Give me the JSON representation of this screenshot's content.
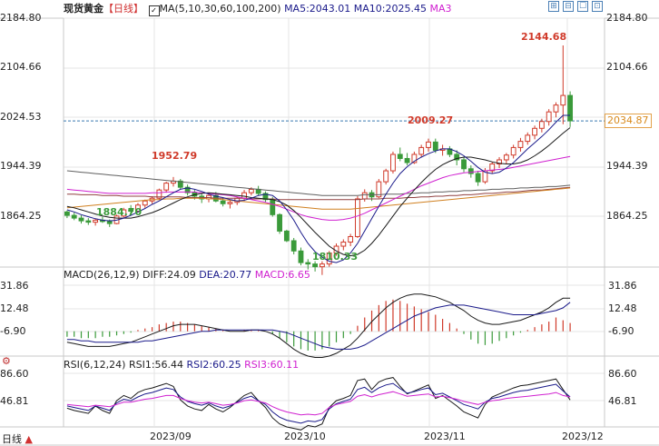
{
  "header": {
    "instrument": "现货黄金",
    "period": "【日线】",
    "ma_label": "MA(5,10,30,60,100,200)",
    "ma5": "MA5:2043.01",
    "ma10": "MA10:2025.45",
    "ma3": "MA3"
  },
  "toolbar": [
    "⊞",
    "⊟",
    "☐",
    "⊡"
  ],
  "price_axis": [
    "2184.80",
    "2104.66",
    "2024.53",
    "1944.39",
    "1864.25"
  ],
  "last_price": "2034.87",
  "macd": {
    "label": "MACD(26,12,9)",
    "diff": "DIFF:24.09",
    "dea": "DEA:20.77",
    "macd": "MACD:6.65",
    "axis": [
      "31.86",
      "12.48",
      "-6.90"
    ]
  },
  "rsi": {
    "label": "RSI(6,12,24)",
    "rsi1": "RSI1:56.44",
    "rsi2": "RSI2:60.25",
    "rsi3": "RSI3:60.11",
    "axis": [
      "86.60",
      "46.81"
    ]
  },
  "dates": [
    "2023/09",
    "2023/10",
    "2023/11",
    "2023/12"
  ],
  "period_button": "日线",
  "annotations": {
    "high": "2144.68",
    "low": "1810.33",
    "local_high_1": "1952.79",
    "local_low_1": "1884.70",
    "local_high_2": "2009.27"
  },
  "colors": {
    "up": "#3a9a3a",
    "down": "#d03a2a",
    "ma5": "#1a1a8a",
    "ma10": "#1a1a1a",
    "ma3": "#d020d0",
    "ma_long1": "#d08020",
    "ma_long2": "#904040",
    "ma_long3": "#606060",
    "grid": "#e4e4e4",
    "last_line": "#3a7ab0"
  },
  "chart_data": {
    "type": "candlestick",
    "price_range": [
      1824.18,
      2184.8
    ],
    "candles": [
      [
        1902,
        1904,
        1893,
        1897
      ],
      [
        1897,
        1901,
        1890,
        1893
      ],
      [
        1893,
        1897,
        1885,
        1889
      ],
      [
        1889,
        1893,
        1883,
        1887
      ],
      [
        1887,
        1892,
        1882,
        1890
      ],
      [
        1890,
        1895,
        1886,
        1888
      ],
      [
        1888,
        1891,
        1880,
        1885
      ],
      [
        1885,
        1898,
        1884,
        1896
      ],
      [
        1896,
        1908,
        1894,
        1905
      ],
      [
        1905,
        1912,
        1900,
        1903
      ],
      [
        1903,
        1915,
        1901,
        1912
      ],
      [
        1912,
        1920,
        1908,
        1918
      ],
      [
        1918,
        1925,
        1914,
        1922
      ],
      [
        1922,
        1936,
        1920,
        1934
      ],
      [
        1934,
        1946,
        1930,
        1944
      ],
      [
        1944,
        1953,
        1939,
        1947
      ],
      [
        1947,
        1950,
        1935,
        1938
      ],
      [
        1938,
        1942,
        1926,
        1930
      ],
      [
        1930,
        1934,
        1920,
        1925
      ],
      [
        1925,
        1930,
        1915,
        1921
      ],
      [
        1921,
        1928,
        1916,
        1926
      ],
      [
        1926,
        1931,
        1916,
        1918
      ],
      [
        1918,
        1922,
        1910,
        1914
      ],
      [
        1914,
        1920,
        1907,
        1916
      ],
      [
        1916,
        1924,
        1912,
        1922
      ],
      [
        1922,
        1934,
        1918,
        1930
      ],
      [
        1930,
        1938,
        1926,
        1935
      ],
      [
        1935,
        1940,
        1926,
        1929
      ],
      [
        1929,
        1932,
        1916,
        1920
      ],
      [
        1920,
        1924,
        1895,
        1898
      ],
      [
        1898,
        1900,
        1870,
        1874
      ],
      [
        1874,
        1876,
        1858,
        1860
      ],
      [
        1860,
        1864,
        1840,
        1845
      ],
      [
        1845,
        1850,
        1824,
        1828
      ],
      [
        1828,
        1833,
        1818,
        1826
      ],
      [
        1826,
        1830,
        1815,
        1822
      ],
      [
        1822,
        1830,
        1810,
        1826
      ],
      [
        1826,
        1845,
        1822,
        1842
      ],
      [
        1842,
        1856,
        1838,
        1852
      ],
      [
        1852,
        1862,
        1846,
        1858
      ],
      [
        1858,
        1870,
        1852,
        1866
      ],
      [
        1866,
        1925,
        1864,
        1921
      ],
      [
        1921,
        1935,
        1917,
        1930
      ],
      [
        1930,
        1934,
        1918,
        1924
      ],
      [
        1924,
        1950,
        1922,
        1946
      ],
      [
        1946,
        1965,
        1942,
        1962
      ],
      [
        1962,
        1990,
        1958,
        1986
      ],
      [
        1986,
        1996,
        1976,
        1980
      ],
      [
        1980,
        1988,
        1970,
        1974
      ],
      [
        1974,
        1990,
        1972,
        1986
      ],
      [
        1986,
        2000,
        1982,
        1996
      ],
      [
        1996,
        2009,
        1990,
        2004
      ],
      [
        2004,
        2009,
        1988,
        1992
      ],
      [
        1992,
        2000,
        1984,
        1994
      ],
      [
        1994,
        1998,
        1982,
        1986
      ],
      [
        1986,
        1992,
        1970,
        1978
      ],
      [
        1978,
        1982,
        1960,
        1965
      ],
      [
        1965,
        1970,
        1952,
        1958
      ],
      [
        1958,
        1962,
        1940,
        1946
      ],
      [
        1946,
        1966,
        1943,
        1962
      ],
      [
        1962,
        1975,
        1958,
        1972
      ],
      [
        1972,
        1982,
        1966,
        1978
      ],
      [
        1978,
        1988,
        1972,
        1985
      ],
      [
        1985,
        2000,
        1980,
        1996
      ],
      [
        1996,
        2010,
        1990,
        2005
      ],
      [
        2005,
        2018,
        2000,
        2014
      ],
      [
        2014,
        2028,
        2008,
        2024
      ],
      [
        2024,
        2038,
        2018,
        2034
      ],
      [
        2034,
        2052,
        2028,
        2048
      ],
      [
        2048,
        2062,
        2040,
        2058
      ],
      [
        2058,
        2145,
        2030,
        2072
      ],
      [
        2072,
        2078,
        2026,
        2035
      ]
    ],
    "ma5": [
      1905,
      1902,
      1898,
      1895,
      1892,
      1890,
      1889,
      1890,
      1893,
      1897,
      1902,
      1907,
      1913,
      1918,
      1924,
      1930,
      1935,
      1937,
      1935,
      1932,
      1928,
      1925,
      1923,
      1920,
      1918,
      1919,
      1922,
      1926,
      1928,
      1926,
      1918,
      1905,
      1890,
      1872,
      1856,
      1844,
      1836,
      1830,
      1828,
      1832,
      1842,
      1856,
      1874,
      1892,
      1910,
      1928,
      1944,
      1958,
      1968,
      1976,
      1982,
      1987,
      1991,
      1994,
      1994,
      1990,
      1984,
      1976,
      1967,
      1960,
      1958,
      1960,
      1966,
      1974,
      1984,
      1994,
      2003,
      2012,
      2022,
      2033,
      2043,
      2043
    ],
    "ma10": [
      1910,
      1908,
      1905,
      1902,
      1899,
      1896,
      1894,
      1893,
      1893,
      1893,
      1895,
      1898,
      1901,
      1905,
      1910,
      1915,
      1920,
      1924,
      1927,
      1929,
      1930,
      1929,
      1928,
      1927,
      1926,
      1925,
      1923,
      1922,
      1921,
      1920,
      1917,
      1912,
      1904,
      1894,
      1883,
      1872,
      1862,
      1852,
      1845,
      1840,
      1838,
      1840,
      1846,
      1856,
      1868,
      1882,
      1896,
      1910,
      1922,
      1934,
      1945,
      1955,
      1964,
      1971,
      1976,
      1980,
      1982,
      1982,
      1980,
      1978,
      1975,
      1973,
      1972,
      1972,
      1974,
      1978,
      1984,
      1991,
      1999,
      2008,
      2017,
      2025
    ],
    "ma3": [
      1935,
      1934,
      1933,
      1932,
      1931,
      1930,
      1929,
      1929,
      1929,
      1929,
      1929,
      1929,
      1930,
      1930,
      1931,
      1931,
      1931,
      1931,
      1931,
      1930,
      1929,
      1928,
      1927,
      1926,
      1924,
      1922,
      1920,
      1918,
      1916,
      1913,
      1910,
      1906,
      1902,
      1898,
      1895,
      1893,
      1891,
      1890,
      1890,
      1891,
      1893,
      1896,
      1900,
      1905,
      1910,
      1915,
      1920,
      1925,
      1930,
      1935,
      1940,
      1944,
      1948,
      1952,
      1955,
      1957,
      1959,
      1960,
      1961,
      1962,
      1963,
      1964,
      1965,
      1967,
      1969,
      1971,
      1973,
      1975,
      1977,
      1979,
      1981,
      1983
    ],
    "ma_long1": [
      1908,
      1909,
      1910,
      1911,
      1912,
      1913,
      1914,
      1915,
      1916,
      1917,
      1918,
      1919,
      1920,
      1920,
      1921,
      1921,
      1922,
      1922,
      1922,
      1922,
      1921,
      1921,
      1920,
      1919,
      1918,
      1917,
      1916,
      1915,
      1914,
      1913,
      1912,
      1911,
      1910,
      1909,
      1908,
      1907,
      1906,
      1906,
      1906,
      1906,
      1906,
      1907,
      1908,
      1909,
      1910,
      1911,
      1912,
      1913,
      1914,
      1915,
      1916,
      1917,
      1918,
      1919,
      1920,
      1921,
      1922,
      1923,
      1924,
      1925,
      1926,
      1927,
      1928,
      1929,
      1930,
      1931,
      1932,
      1933,
      1934,
      1935,
      1936,
      1937
    ],
    "ma_long2": [
      1928,
      1928,
      1927,
      1927,
      1927,
      1926,
      1926,
      1926,
      1925,
      1925,
      1925,
      1925,
      1924,
      1924,
      1924,
      1924,
      1924,
      1923,
      1923,
      1923,
      1923,
      1922,
      1922,
      1922,
      1922,
      1922,
      1921,
      1921,
      1921,
      1921,
      1920,
      1920,
      1920,
      1920,
      1920,
      1920,
      1920,
      1920,
      1920,
      1920,
      1920,
      1920,
      1921,
      1921,
      1921,
      1922,
      1922,
      1922,
      1923,
      1923,
      1924,
      1924,
      1925,
      1925,
      1926,
      1926,
      1927,
      1927,
      1928,
      1929,
      1929,
      1930,
      1931,
      1931,
      1932,
      1933,
      1934,
      1934,
      1935,
      1936,
      1937,
      1938
    ],
    "ma_long3": [
      1962,
      1961,
      1960,
      1959,
      1958,
      1957,
      1956,
      1955,
      1954,
      1953,
      1952,
      1951,
      1950,
      1949,
      1948,
      1947,
      1946,
      1945,
      1944,
      1943,
      1942,
      1941,
      1940,
      1939,
      1938,
      1937,
      1936,
      1935,
      1934,
      1933,
      1932,
      1931,
      1930,
      1929,
      1928,
      1927,
      1926,
      1926,
      1926,
      1926,
      1926,
      1926,
      1927,
      1927,
      1927,
      1928,
      1928,
      1928,
      1929,
      1929,
      1930,
      1930,
      1931,
      1931,
      1932,
      1932,
      1933,
      1933,
      1934,
      1934,
      1935,
      1935,
      1936,
      1936,
      1937,
      1937,
      1938,
      1938,
      1939,
      1939,
      1940,
      1941
    ],
    "macd_range": [
      -18,
      40
    ],
    "macd_hist": [
      -4,
      -4,
      -5,
      -5,
      -5,
      -4,
      -4,
      -3,
      -2,
      -1,
      1,
      2,
      3,
      5,
      6,
      7,
      7,
      6,
      5,
      4,
      3,
      2,
      1,
      0,
      0,
      1,
      1,
      1,
      0,
      -2,
      -5,
      -8,
      -11,
      -13,
      -14,
      -14,
      -13,
      -11,
      -8,
      -5,
      -2,
      4,
      10,
      15,
      19,
      22,
      23,
      22,
      20,
      18,
      16,
      14,
      12,
      9,
      6,
      2,
      -2,
      -6,
      -9,
      -10,
      -9,
      -7,
      -5,
      -3,
      -1,
      1,
      3,
      5,
      7,
      10,
      8,
      6
    ],
    "macd_diff": [
      -8,
      -9,
      -10,
      -11,
      -11,
      -11,
      -11,
      -10,
      -9,
      -8,
      -6,
      -4,
      -2,
      0,
      2,
      4,
      5,
      5,
      5,
      4,
      3,
      2,
      1,
      0,
      0,
      0,
      1,
      1,
      0,
      -2,
      -5,
      -9,
      -13,
      -16,
      -18,
      -19,
      -19,
      -18,
      -16,
      -13,
      -10,
      -5,
      1,
      7,
      12,
      17,
      21,
      24,
      26,
      27,
      27,
      26,
      25,
      23,
      21,
      18,
      15,
      11,
      8,
      6,
      5,
      5,
      6,
      7,
      8,
      10,
      12,
      14,
      17,
      21,
      24,
      24
    ],
    "macd_dea": [
      -6,
      -6,
      -7,
      -7,
      -8,
      -8,
      -8,
      -8,
      -8,
      -8,
      -8,
      -7,
      -7,
      -6,
      -5,
      -4,
      -3,
      -2,
      -1,
      0,
      0,
      1,
      1,
      1,
      1,
      1,
      1,
      1,
      1,
      1,
      0,
      -1,
      -3,
      -5,
      -7,
      -9,
      -11,
      -12,
      -13,
      -13,
      -13,
      -12,
      -10,
      -7,
      -4,
      -1,
      2,
      5,
      8,
      11,
      13,
      15,
      17,
      18,
      19,
      19,
      19,
      18,
      17,
      16,
      15,
      14,
      13,
      12,
      12,
      12,
      12,
      13,
      14,
      15,
      17,
      21
    ],
    "rsi_range": [
      20,
      100
    ],
    "rsi1": [
      45,
      42,
      40,
      38,
      48,
      42,
      38,
      55,
      62,
      58,
      66,
      70,
      72,
      75,
      78,
      74,
      56,
      48,
      44,
      42,
      50,
      44,
      40,
      46,
      54,
      62,
      66,
      55,
      46,
      32,
      24,
      20,
      18,
      16,
      22,
      20,
      24,
      46,
      55,
      58,
      62,
      82,
      84,
      70,
      80,
      84,
      86,
      74,
      64,
      68,
      72,
      76,
      58,
      62,
      55,
      48,
      40,
      36,
      32,
      50,
      60,
      64,
      68,
      72,
      75,
      76,
      78,
      80,
      82,
      84,
      70,
      56
    ],
    "rsi2": [
      48,
      46,
      44,
      42,
      48,
      45,
      42,
      52,
      57,
      55,
      60,
      64,
      66,
      69,
      72,
      70,
      60,
      54,
      51,
      49,
      52,
      48,
      45,
      48,
      53,
      58,
      61,
      55,
      50,
      40,
      33,
      29,
      27,
      25,
      28,
      27,
      30,
      44,
      51,
      54,
      57,
      70,
      73,
      66,
      72,
      76,
      78,
      71,
      65,
      67,
      70,
      72,
      63,
      65,
      60,
      55,
      50,
      47,
      44,
      53,
      58,
      60,
      63,
      66,
      68,
      69,
      71,
      73,
      75,
      77,
      68,
      60
    ],
    "rsi3": [
      50,
      49,
      48,
      47,
      49,
      48,
      47,
      50,
      53,
      53,
      55,
      57,
      58,
      60,
      62,
      62,
      58,
      55,
      53,
      52,
      53,
      51,
      49,
      50,
      52,
      55,
      56,
      54,
      52,
      47,
      43,
      40,
      38,
      36,
      37,
      36,
      38,
      46,
      50,
      52,
      54,
      61,
      63,
      60,
      63,
      65,
      67,
      64,
      61,
      62,
      63,
      64,
      60,
      61,
      59,
      57,
      54,
      52,
      50,
      53,
      55,
      56,
      58,
      59,
      60,
      61,
      62,
      63,
      64,
      66,
      62,
      60
    ]
  }
}
